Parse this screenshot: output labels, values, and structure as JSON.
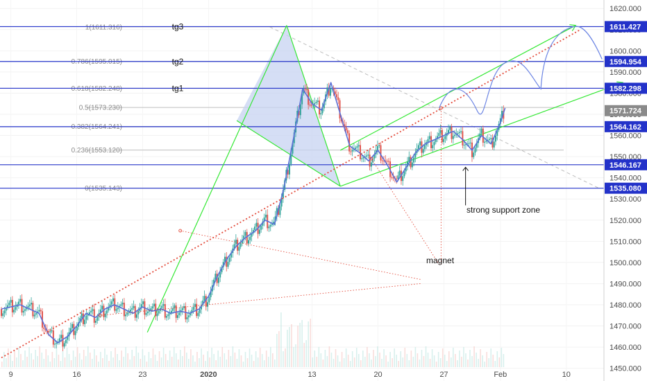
{
  "chart_data": {
    "type": "line",
    "title": "",
    "xlabel": "",
    "ylabel": "",
    "colors": {
      "price": "#5b6fd6",
      "hline": "#2332c9",
      "channel": "#33e833",
      "dotted": "#e34b3b",
      "projection": "#6b84e3",
      "triangle": "#c7d3f2",
      "fib": "#bdbdbd",
      "candle_up": "#2fa39a",
      "candle_down": "#e0554e",
      "price_tag_gray": "#8a8a8a",
      "arrow": "#111111"
    },
    "x_ticks": [
      "9",
      "16",
      "23",
      "2020",
      "13",
      "20",
      "27",
      "Feb",
      "10"
    ],
    "y_ticks": [
      "1620.000",
      "1610.000",
      "1600.000",
      "1590.000",
      "1580.000",
      "1570.000",
      "1560.000",
      "1550.000",
      "1540.000",
      "1530.000",
      "1520.000",
      "1510.000",
      "1500.000",
      "1490.000",
      "1480.000",
      "1470.000",
      "1460.000",
      "1450.000"
    ],
    "ylim": [
      1444,
      1624
    ],
    "xlim_days": [
      0,
      64
    ],
    "price_series": {
      "name": "",
      "x": [
        0,
        2,
        4,
        5,
        6,
        7,
        8,
        9,
        10,
        11,
        12,
        13,
        14,
        15,
        16,
        17,
        18,
        19,
        20,
        21,
        22,
        23,
        24,
        25,
        26,
        27,
        28,
        29,
        30,
        31,
        32,
        33,
        34,
        35,
        36,
        37,
        38,
        39,
        40,
        41,
        42,
        43,
        44,
        45,
        46,
        47,
        48,
        49,
        50,
        51,
        52,
        53,
        53.5
      ],
      "y": [
        1478,
        1480,
        1476,
        1466,
        1462,
        1465,
        1470,
        1476,
        1474,
        1478,
        1480,
        1478,
        1476,
        1479,
        1477,
        1478,
        1476,
        1477,
        1476,
        1478,
        1484,
        1494,
        1502,
        1508,
        1512,
        1515,
        1520,
        1518,
        1535,
        1558,
        1582,
        1575,
        1572,
        1585,
        1570,
        1555,
        1552,
        1548,
        1553,
        1546,
        1538,
        1545,
        1552,
        1556,
        1558,
        1560,
        1562,
        1558,
        1553,
        1560,
        1556,
        1566,
        1573
      ]
    },
    "h_levels": [
      {
        "label": "tg3",
        "value": 1611.427,
        "tag": "1611.427"
      },
      {
        "label": "tg2",
        "value": 1594.954,
        "tag": "1594.954"
      },
      {
        "label": "tg1",
        "value": 1582.298,
        "tag": "1582.298"
      },
      {
        "label": "",
        "value": 1564.162,
        "tag": "1564.162"
      },
      {
        "label": "",
        "value": 1546.167,
        "tag": "1546.167"
      },
      {
        "label": "",
        "value": 1535.08,
        "tag": "1535.080"
      }
    ],
    "current_price_tag": "1571.724",
    "current_price": 1571.724,
    "fib_levels": [
      {
        "label": "1(1611.316)",
        "value": 1611.316
      },
      {
        "label": "0.786(1595.015)",
        "value": 1595.015
      },
      {
        "label": "0.618(1582.248)",
        "value": 1582.248
      },
      {
        "label": "0.5(1573.230)",
        "value": 1573.23
      },
      {
        "label": "0.382(1564.241)",
        "value": 1564.241
      },
      {
        "label": "0.236(1553.120)",
        "value": 1553.12
      },
      {
        "label": "0(1535.143)",
        "value": 1535.143
      }
    ],
    "annotations": {
      "support": "strong support zone",
      "magnet": "magnet"
    }
  }
}
